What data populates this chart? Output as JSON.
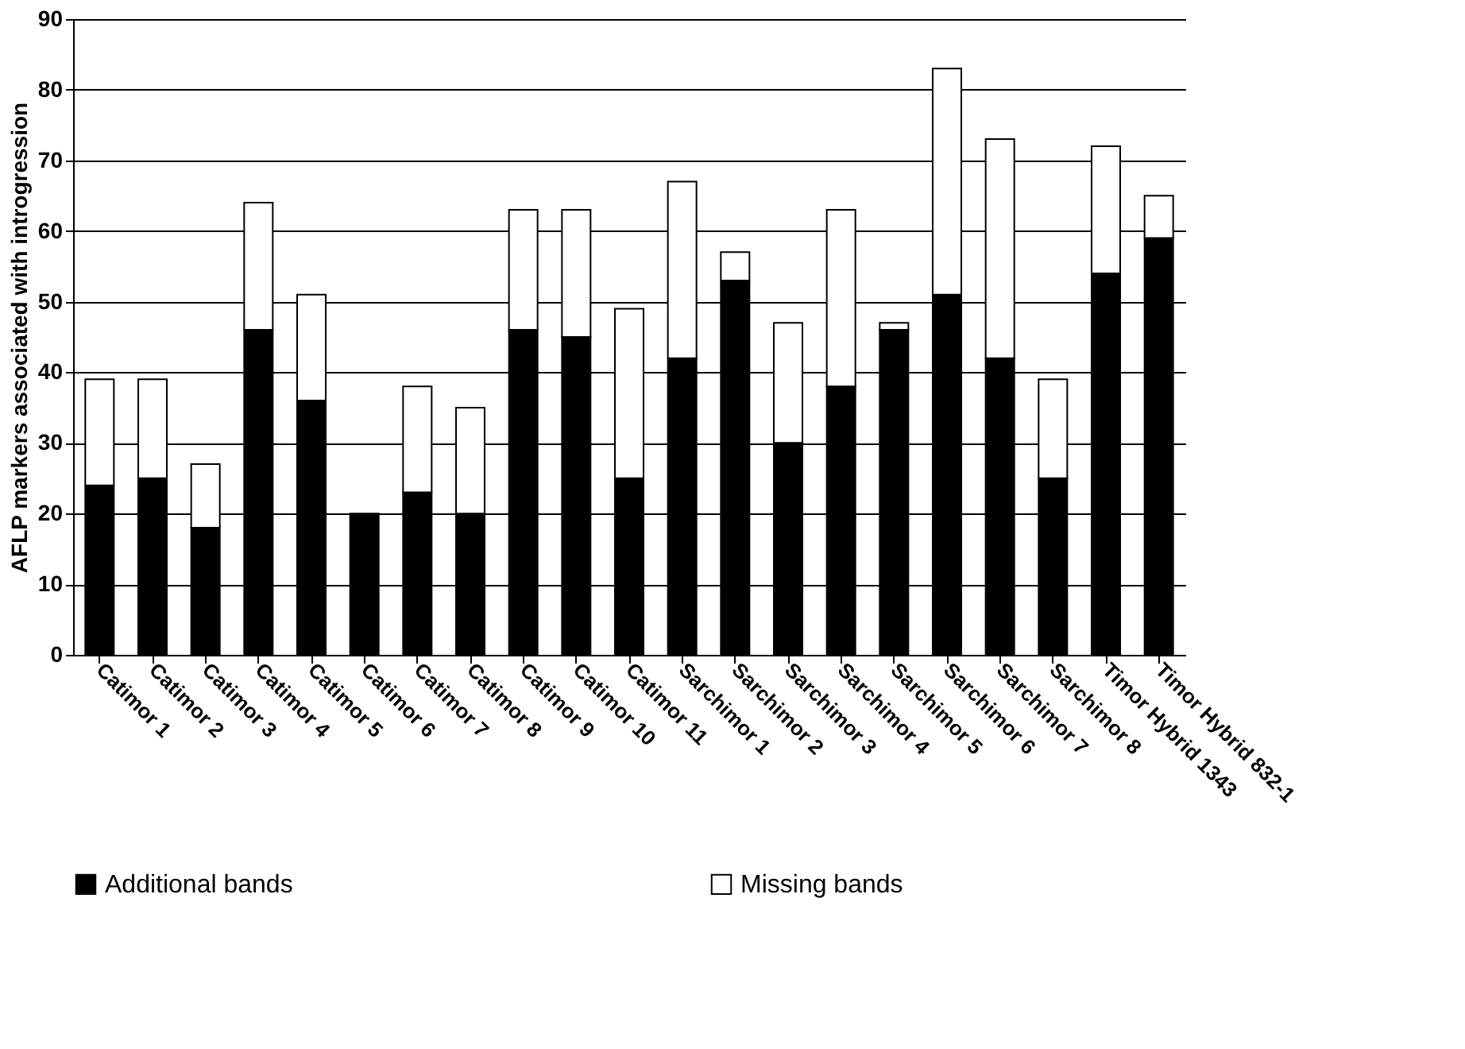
{
  "chart_data": {
    "type": "bar",
    "stacked": true,
    "ylabel": "AFLP markers associated with introgression",
    "categories": [
      "Catimor 1",
      "Catimor 2",
      "Catimor 3",
      "Catimor 4",
      "Catimor 5",
      "Catimor 6",
      "Catimor 7",
      "Catimor 8",
      "Catimor 9",
      "Catimor 10",
      "Catimor 11",
      "Sarchimor 1",
      "Sarchimor 2",
      "Sarchimor 3",
      "Sarchimor 4",
      "Sarchimor 5",
      "Sarchimor 6",
      "Sarchimor 7",
      "Sarchimor 8",
      "Timor Hybrid 1343",
      "Timor Hybrid 832-1"
    ],
    "series": [
      {
        "name": "Additional bands",
        "color": "#000000",
        "values": [
          24,
          25,
          18,
          46,
          36,
          20,
          23,
          20,
          46,
          45,
          25,
          42,
          53,
          30,
          38,
          46,
          51,
          42,
          25,
          54,
          59
        ]
      },
      {
        "name": "Missing bands",
        "color": "#ffffff",
        "values": [
          15,
          14,
          9,
          18,
          15,
          null,
          15,
          15,
          17,
          18,
          24,
          25,
          4,
          17,
          25,
          1,
          32,
          31,
          14,
          18,
          6
        ]
      }
    ],
    "ylim": [
      0,
      90
    ],
    "yticks": [
      0,
      10,
      20,
      30,
      40,
      50,
      60,
      70,
      80,
      90
    ],
    "grid": "y",
    "legend": "bottom"
  }
}
